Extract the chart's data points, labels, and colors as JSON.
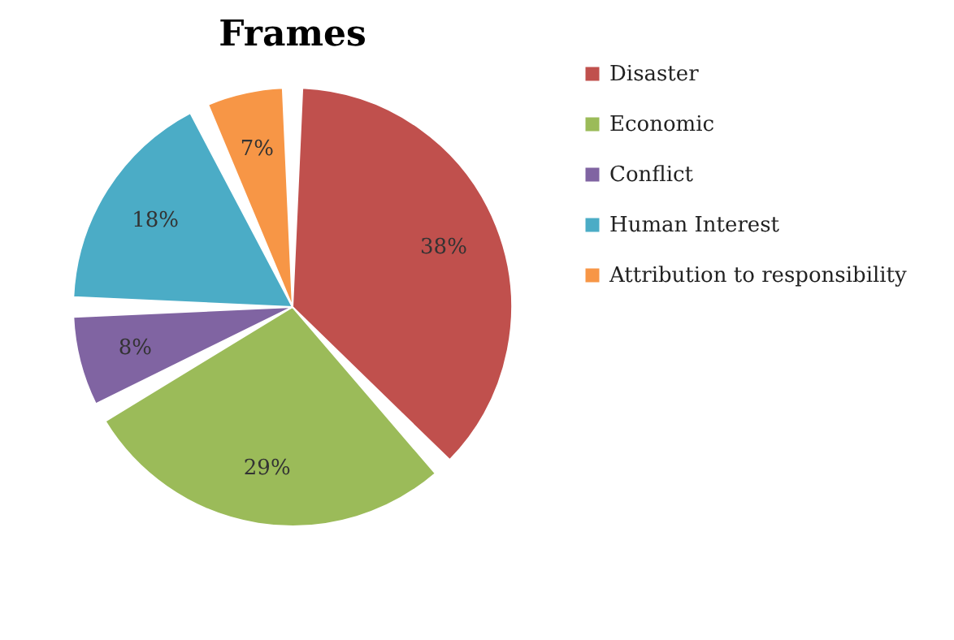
{
  "chart_data": {
    "type": "pie",
    "title": "Frames",
    "categories": [
      "Disaster",
      "Economic",
      "Conflict",
      "Human Interest",
      "Attribution to responsibility"
    ],
    "values": [
      38,
      29,
      8,
      18,
      7
    ],
    "colors": [
      "#c0504d",
      "#9bbb59",
      "#8064a2",
      "#4bacc6",
      "#f79646"
    ],
    "value_labels": [
      "38%",
      "29%",
      "8%",
      "18%",
      "7%"
    ],
    "legend": "right"
  }
}
